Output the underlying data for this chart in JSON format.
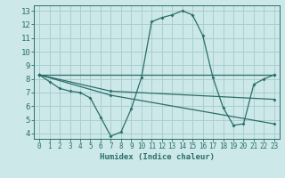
{
  "xlabel": "Humidex (Indice chaleur)",
  "bg_color": "#cce8e8",
  "line_color": "#2a6e6a",
  "grid_color": "#aacece",
  "xlim": [
    -0.5,
    23.5
  ],
  "ylim": [
    3.6,
    13.4
  ],
  "xticks": [
    0,
    1,
    2,
    3,
    4,
    5,
    6,
    7,
    8,
    9,
    10,
    11,
    12,
    13,
    14,
    15,
    16,
    17,
    18,
    19,
    20,
    21,
    22,
    23
  ],
  "yticks": [
    4,
    5,
    6,
    7,
    8,
    9,
    10,
    11,
    12,
    13
  ],
  "lines": [
    {
      "x": [
        0,
        1,
        2,
        3,
        4,
        5,
        6,
        7,
        8,
        9,
        10,
        11,
        12,
        13,
        14,
        15,
        16,
        17,
        18,
        19,
        20,
        21,
        22,
        23
      ],
      "y": [
        8.3,
        7.8,
        7.3,
        7.1,
        7.0,
        6.6,
        5.2,
        3.8,
        4.1,
        5.8,
        8.1,
        12.2,
        12.5,
        12.7,
        13.0,
        12.7,
        11.2,
        8.1,
        5.9,
        4.6,
        4.7,
        7.6,
        8.0,
        8.3
      ],
      "marker": true
    },
    {
      "x": [
        0,
        23
      ],
      "y": [
        8.3,
        8.3
      ],
      "marker": true
    },
    {
      "x": [
        0,
        7,
        23
      ],
      "y": [
        8.3,
        7.1,
        6.5
      ],
      "marker": true
    },
    {
      "x": [
        0,
        7,
        23
      ],
      "y": [
        8.3,
        6.8,
        4.7
      ],
      "marker": true
    }
  ]
}
